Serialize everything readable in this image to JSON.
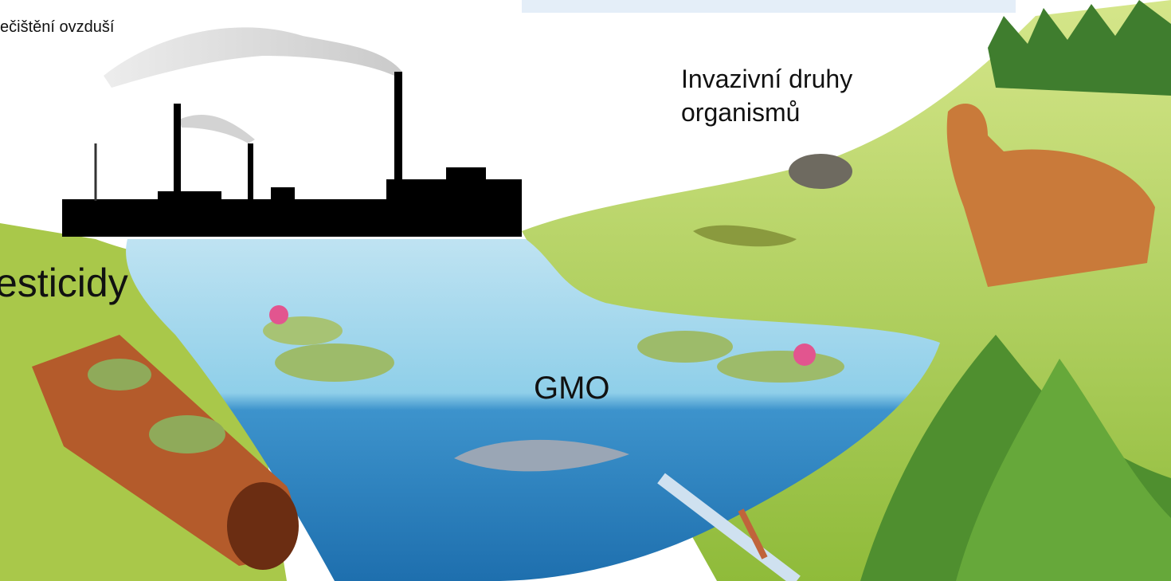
{
  "labels": {
    "air_pollution": "ečištění ovzduší",
    "pesticides": "esticidy",
    "gmo": "GMO",
    "invasive_species": [
      "Invazivní druhy",
      "organismů"
    ]
  }
}
